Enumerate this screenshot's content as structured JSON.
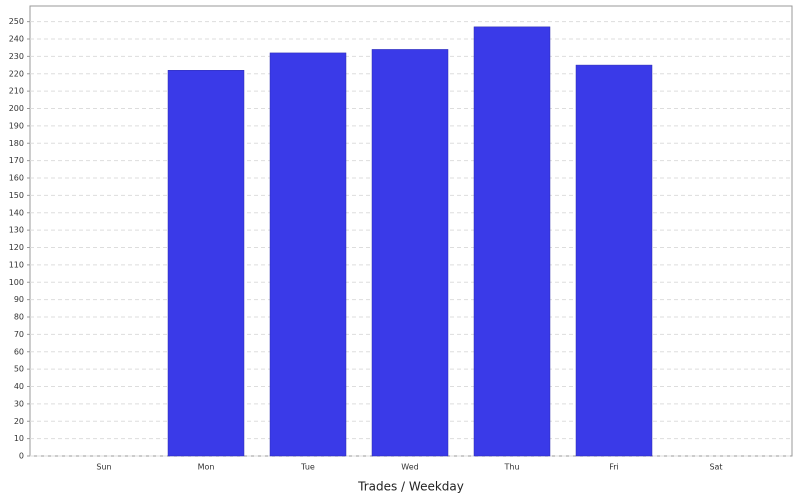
{
  "chart_data": {
    "type": "bar",
    "x_label": "Trades / Weekday",
    "categories": [
      "Sun",
      "Mon",
      "Tue",
      "Wed",
      "Thu",
      "Fri",
      "Sat"
    ],
    "values": [
      0,
      222,
      232,
      234,
      247,
      225,
      0
    ],
    "color": "#3a3ae8",
    "ylim": [
      0,
      259
    ],
    "yticks": [
      0,
      10,
      20,
      30,
      40,
      50,
      60,
      70,
      80,
      90,
      100,
      110,
      120,
      130,
      140,
      150,
      160,
      170,
      180,
      190,
      200,
      210,
      220,
      230,
      240,
      250
    ],
    "grid": true
  }
}
